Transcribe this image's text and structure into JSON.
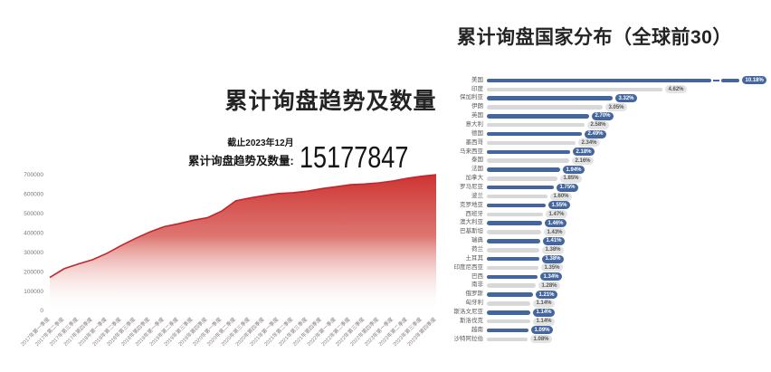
{
  "page": {
    "background": "#ffffff"
  },
  "colors": {
    "bar_blue": "#44669f",
    "bar_gray": "#d8d8d8",
    "area_red_line": "#c1272d",
    "area_red_fill": "#cb2b28",
    "title_text": "#232323",
    "tick_text": "#8a8080"
  },
  "left_chart": {
    "title": "累计询盘趋势及数量",
    "note": "截止2023年12月",
    "stat_label": "累计询盘趋势及数量:",
    "stat_value": "15177847"
  },
  "right_chart": {
    "title": "累计询盘国家分布（全球前30）"
  },
  "chart_data": [
    {
      "type": "area",
      "title": "累计询盘趋势及数量",
      "xlabel": "",
      "ylabel": "",
      "ylim": [
        0,
        700000
      ],
      "yticks": [
        0,
        100000,
        200000,
        300000,
        400000,
        500000,
        600000,
        700000
      ],
      "grid": false,
      "legend": "none",
      "xtick_rotation": 45,
      "annotation": {
        "note": "截止2023年12月",
        "label": "累计询盘趋势及数量:",
        "value": "15177847"
      },
      "x": [
        "2017年第一季度",
        "2017年第二季度",
        "2017年第三季度",
        "2017年第四季度",
        "2018年第一季度",
        "2018年第二季度",
        "2018年第三季度",
        "2018年第四季度",
        "2019年第一季度",
        "2019年第二季度",
        "2019年第三季度",
        "2019年第四季度",
        "2020年第一季度",
        "2020年第二季度",
        "2020年第三季度",
        "2020年第四季度",
        "2021年第一季度",
        "2021年第二季度",
        "2021年第三季度",
        "2021年第四季度",
        "2022年第一季度",
        "2022年第二季度",
        "2022年第三季度",
        "2022年第四季度",
        "2023年第一季度",
        "2023年第二季度",
        "2023年第三季度",
        "2023年第四季度"
      ],
      "values": [
        170000,
        215000,
        240000,
        262000,
        295000,
        335000,
        372000,
        405000,
        432000,
        447000,
        465000,
        478000,
        512000,
        565000,
        580000,
        592000,
        603000,
        607000,
        615000,
        628000,
        638000,
        648000,
        652000,
        658000,
        668000,
        682000,
        692000,
        700000
      ]
    },
    {
      "type": "bar",
      "orientation": "horizontal",
      "title": "累计询盘国家分布（全球前30）",
      "legend": "none",
      "grid": false,
      "axis_break_first_bar": true,
      "bar_colors_alternate": [
        "#44669f",
        "#d8d8d8"
      ],
      "categories": [
        "美国",
        "印度",
        "保加利亚",
        "伊朗",
        "英国",
        "意大利",
        "德国",
        "墨西哥",
        "马来西亚",
        "泰国",
        "法国",
        "加拿大",
        "罗马尼亚",
        "波兰",
        "克罗地亚",
        "西班牙",
        "澳大利亚",
        "巴基斯坦",
        "瑞典",
        "荷兰",
        "土耳其",
        "印度尼西亚",
        "巴西",
        "南非",
        "俄罗斯",
        "匈牙利",
        "斯洛文尼亚",
        "斯洛伐克",
        "越南",
        "沙特阿拉伯"
      ],
      "values": [
        10.18,
        4.62,
        3.32,
        3.05,
        2.7,
        2.58,
        2.49,
        2.34,
        2.18,
        2.16,
        1.94,
        1.85,
        1.75,
        1.6,
        1.55,
        1.47,
        1.46,
        1.43,
        1.41,
        1.38,
        1.38,
        1.35,
        1.34,
        1.28,
        1.21,
        1.14,
        1.14,
        1.14,
        1.09,
        1.08
      ],
      "labels": [
        "10.18%",
        "4.62%",
        "3.32%",
        "3.05%",
        "2.70%",
        "2.58%",
        "2.49%",
        "2.34%",
        "2.18%",
        "2.16%",
        "1.94%",
        "1.85%",
        "1.75%",
        "1.60%",
        "1.55%",
        "1.47%",
        "1.46%",
        "1.43%",
        "1.41%",
        "1.38%",
        "1.38%",
        "1.35%",
        "1.34%",
        "1.28%",
        "1.21%",
        "1.14%",
        "1.14%",
        "1.14%",
        "1.09%",
        "1.08%"
      ]
    }
  ]
}
